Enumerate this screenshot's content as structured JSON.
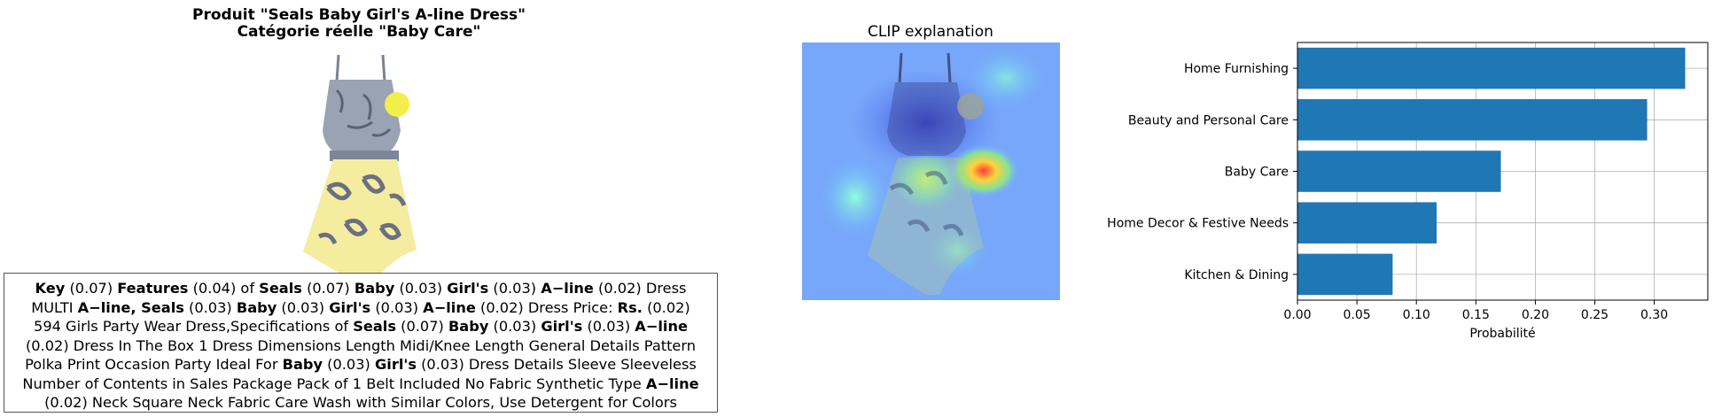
{
  "left_panel": {
    "title_line1": "Produit \"Seals Baby Girl's A-line Dress\"",
    "title_line2": "Catégorie réelle \"Baby Care\"",
    "description_lines": [
      [
        {
          "t": "Key",
          "b": true
        },
        {
          "t": " (0.07) "
        },
        {
          "t": "Features",
          "b": true
        },
        {
          "t": " (0.04) of "
        },
        {
          "t": "Seals",
          "b": true
        },
        {
          "t": " (0.07) "
        },
        {
          "t": "Baby",
          "b": true
        },
        {
          "t": " (0.03) "
        },
        {
          "t": "Girl's",
          "b": true
        },
        {
          "t": " (0.03) "
        },
        {
          "t": "A−line",
          "b": true
        },
        {
          "t": " (0.02) Dress"
        }
      ],
      [
        {
          "t": "MULTI "
        },
        {
          "t": "A−line, Seals",
          "b": true
        },
        {
          "t": " (0.03) "
        },
        {
          "t": "Baby",
          "b": true
        },
        {
          "t": " (0.03) "
        },
        {
          "t": "Girl's",
          "b": true
        },
        {
          "t": " (0.03) "
        },
        {
          "t": "A−line",
          "b": true
        },
        {
          "t": " (0.02) Dress Price: "
        },
        {
          "t": "Rs.",
          "b": true
        },
        {
          "t": "  (0.02)"
        }
      ],
      [
        {
          "t": "594 Girls Party Wear Dress,Specifications of "
        },
        {
          "t": "Seals",
          "b": true
        },
        {
          "t": " (0.07) "
        },
        {
          "t": "Baby",
          "b": true
        },
        {
          "t": " (0.03) "
        },
        {
          "t": "Girl's",
          "b": true
        },
        {
          "t": " (0.03) "
        },
        {
          "t": "A−line",
          "b": true
        }
      ],
      [
        {
          "t": "(0.02) Dress In The Box 1 Dress Dimensions Length Midi/Knee Length General Details Pattern"
        }
      ],
      [
        {
          "t": "Polka Print Occasion Party Ideal For "
        },
        {
          "t": "Baby",
          "b": true
        },
        {
          "t": " (0.03) "
        },
        {
          "t": "Girl's",
          "b": true
        },
        {
          "t": " (0.03) Dress Details Sleeve Sleeveless"
        }
      ],
      [
        {
          "t": "Number of Contents in Sales Package Pack of 1 Belt Included No Fabric Synthetic Type "
        },
        {
          "t": "A−line",
          "b": true
        }
      ],
      [
        {
          "t": "(0.02) Neck Square Neck Fabric Care Wash with Similar Colors, Use Detergent for Colors"
        }
      ]
    ]
  },
  "clip_panel": {
    "title": "CLIP explanation"
  },
  "chart_data": {
    "type": "bar",
    "orientation": "horizontal",
    "title": "",
    "xlabel": "Probabilité",
    "ylabel": "",
    "categories": [
      "Home Furnishing",
      "Beauty and Personal Care",
      "Baby Care",
      "Home Decor & Festive Needs",
      "Kitchen & Dining"
    ],
    "values": [
      0.326,
      0.294,
      0.171,
      0.117,
      0.08
    ],
    "xlim": [
      0,
      0.345
    ],
    "xticks": [
      "0.00",
      "0.05",
      "0.10",
      "0.15",
      "0.20",
      "0.25",
      "0.30"
    ],
    "grid": true,
    "bar_color": "#1f77b4"
  }
}
